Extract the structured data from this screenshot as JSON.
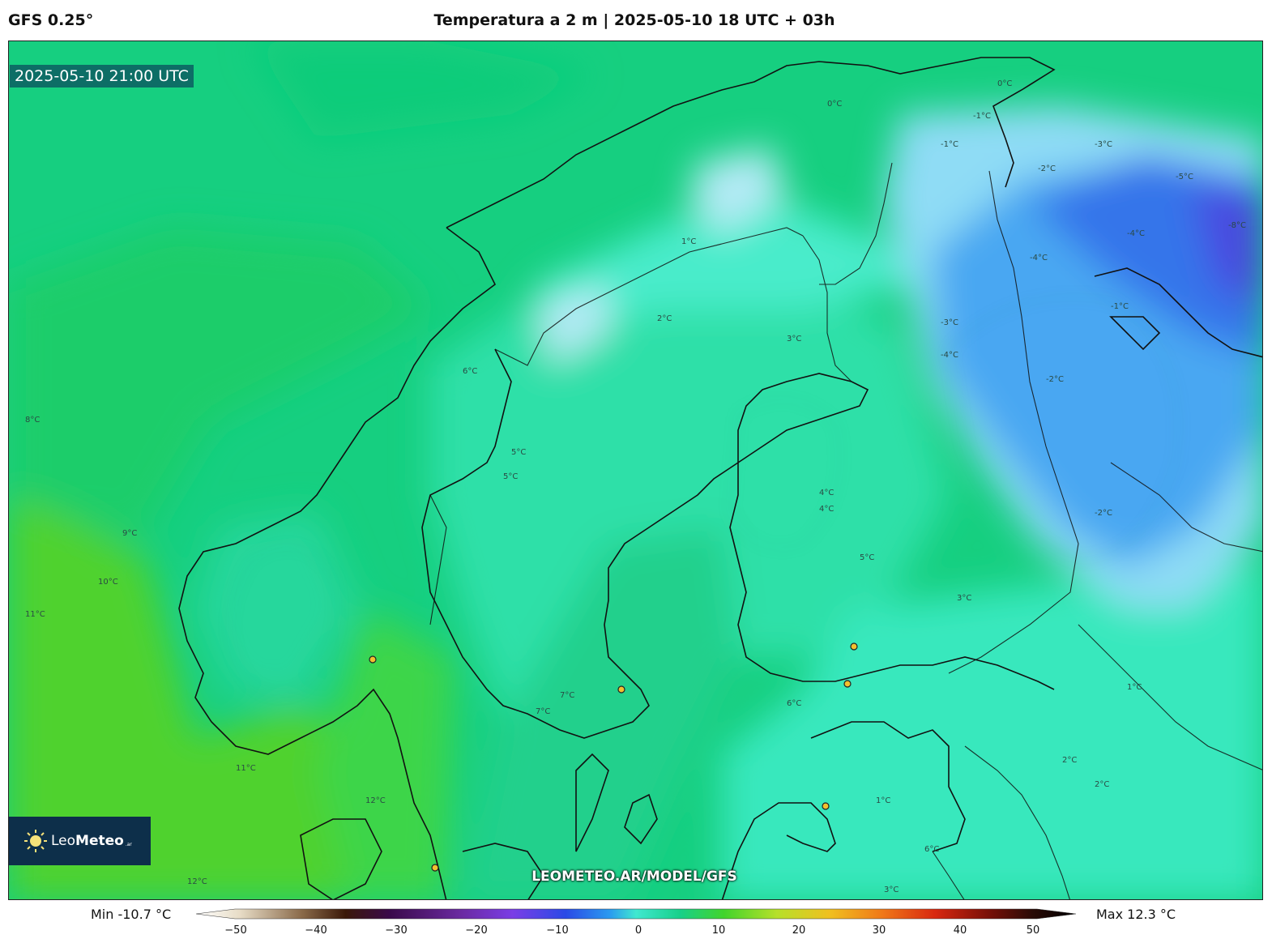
{
  "header": {
    "model": "GFS 0.25°",
    "title": "Temperatura a 2 m | 2025-05-10 18 UTC + 03h"
  },
  "map": {
    "valid_time": "2025-05-10 21:00 UTC",
    "watermark": "LEOMETEO.AR/MODEL/GFS",
    "contour_labels": [
      "0°C",
      "-1°C",
      "0°C",
      "-1°C",
      "-2°C",
      "-3°C",
      "-4°C",
      "-5°C",
      "-8°C",
      "1°C",
      "2°C",
      "3°C",
      "4°C",
      "5°C",
      "6°C",
      "7°C",
      "8°C",
      "9°C",
      "10°C",
      "11°C",
      "12°C",
      "-2°C",
      "-4°C",
      "-1°C",
      "1°C",
      "2°C",
      "3°C",
      "4°C",
      "5°C",
      "6°C",
      "7°C",
      "1°C",
      "2°C",
      "3°C",
      "11°C",
      "12°C",
      "-3°C",
      "-4°C",
      "-2°C",
      "5°C",
      "6°C"
    ],
    "city_markers": 7
  },
  "logo": {
    "part1": "Leo",
    "part2": "Meteo",
    "part3": ".ar"
  },
  "colorbar": {
    "min_label": "Min -10.7 °C",
    "max_label": "Max 12.3 °C",
    "ticks": [
      "−50",
      "−40",
      "−30",
      "−20",
      "−10",
      "0",
      "10",
      "20",
      "30",
      "40",
      "50"
    ],
    "range": [
      -50,
      50
    ]
  },
  "colors": {
    "sea_green": "#12cc75",
    "land_cyan": "#2ee6b0",
    "cold_blue": "#3d8ff0",
    "warm_green": "#55d42a",
    "badge": "#0d6e66",
    "logo_bg": "#0d2f4a"
  }
}
